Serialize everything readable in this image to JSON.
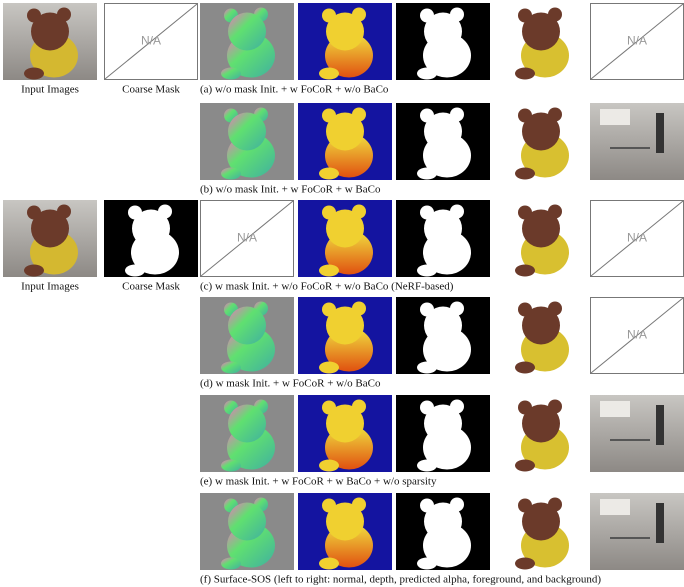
{
  "rows": [
    {
      "caption": "(a) w/o mask Init. + w FoCoR + w/o BaCo",
      "na": [
        "N/A",
        "N/A"
      ],
      "input_labels": [
        "Input Images",
        "Coarse Mask"
      ]
    },
    {
      "caption": "(b) w/o mask Init. + w FoCoR + w BaCo"
    },
    {
      "caption": "(c) w mask Init. + w/o FoCoR + w/o BaCo (NeRF-based)",
      "na": [
        "N/A",
        "N/A"
      ],
      "input_labels": [
        "Input Images",
        "Coarse Mask"
      ]
    },
    {
      "caption": "(d) w mask Init. + w FoCoR + w/o BaCo",
      "na": [
        "N/A"
      ]
    },
    {
      "caption": "(e) w mask Init. + w FoCoR + w BaCo +  w/o sparsity"
    },
    {
      "caption": "(f) Surface-SOS (left to right: normal, depth, predicted alpha, foreground, and background)"
    }
  ]
}
